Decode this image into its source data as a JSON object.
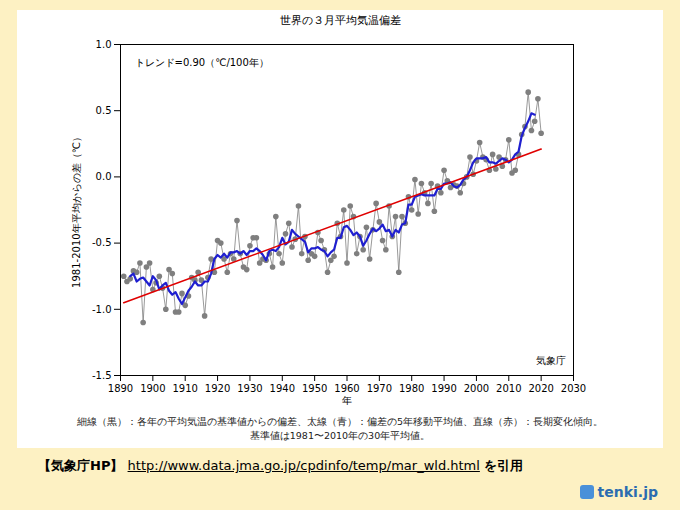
{
  "chart_data": {
    "type": "line",
    "title": "世界の３月平均気温偏差",
    "x_label": "年",
    "y_label": "1981-2010年平均からの差（℃）",
    "annotations": [
      "トレンド=0.90（℃/100年）",
      "気象庁"
    ],
    "notes": [
      "細線（黒）：各年の平均気温の基準値からの偏差、太線（青）：偏差の5年移動平均値、直線（赤）：長期変化傾向。",
      "基準値は1981〜2010年の30年平均値。"
    ],
    "source": "【気象庁HP】",
    "source_url": "http://www.data.jma.go.jp/cpdinfo/temp/mar_wld.html",
    "source_suffix": "を引用",
    "logo": "tenki.jp",
    "x": [
      1891,
      1892,
      1893,
      1894,
      1895,
      1896,
      1897,
      1898,
      1899,
      1900,
      1901,
      1902,
      1903,
      1904,
      1905,
      1906,
      1907,
      1908,
      1909,
      1910,
      1911,
      1912,
      1913,
      1914,
      1915,
      1916,
      1917,
      1918,
      1919,
      1920,
      1921,
      1922,
      1923,
      1924,
      1925,
      1926,
      1927,
      1928,
      1929,
      1930,
      1931,
      1932,
      1933,
      1934,
      1935,
      1936,
      1937,
      1938,
      1939,
      1940,
      1941,
      1942,
      1943,
      1944,
      1945,
      1946,
      1947,
      1948,
      1949,
      1950,
      1951,
      1952,
      1953,
      1954,
      1955,
      1956,
      1957,
      1958,
      1959,
      1960,
      1961,
      1962,
      1963,
      1964,
      1965,
      1966,
      1967,
      1968,
      1969,
      1970,
      1971,
      1972,
      1973,
      1974,
      1975,
      1976,
      1977,
      1978,
      1979,
      1980,
      1981,
      1982,
      1983,
      1984,
      1985,
      1986,
      1987,
      1988,
      1989,
      1990,
      1991,
      1992,
      1993,
      1994,
      1995,
      1996,
      1997,
      1998,
      1999,
      2000,
      2001,
      2002,
      2003,
      2004,
      2005,
      2006,
      2007,
      2008,
      2009,
      2010,
      2011,
      2012,
      2013,
      2014,
      2015,
      2016,
      2017,
      2018,
      2019,
      2020
    ],
    "series": [
      {
        "color": "#7f7f7f",
        "line_style": "thin",
        "marker": "circle",
        "values": [
          -0.75,
          -0.79,
          -0.77,
          -0.71,
          -0.72,
          -0.65,
          -1.1,
          -0.68,
          -0.65,
          -0.85,
          -0.8,
          -0.75,
          -0.84,
          -1.0,
          -0.7,
          -0.73,
          -1.02,
          -1.02,
          -0.88,
          -0.97,
          -0.9,
          -0.76,
          -0.78,
          -0.72,
          -0.78,
          -1.05,
          -0.76,
          -0.62,
          -0.72,
          -0.48,
          -0.5,
          -0.62,
          -0.72,
          -0.58,
          -0.62,
          -0.33,
          -0.58,
          -0.68,
          -0.7,
          -0.52,
          -0.46,
          -0.46,
          -0.65,
          -0.62,
          -0.63,
          -0.58,
          -0.68,
          -0.3,
          -0.58,
          -0.65,
          -0.43,
          -0.35,
          -0.53,
          -0.47,
          -0.22,
          -0.58,
          -0.45,
          -0.63,
          -0.58,
          -0.6,
          -0.42,
          -0.48,
          -0.55,
          -0.72,
          -0.63,
          -0.6,
          -0.35,
          -0.45,
          -0.25,
          -0.65,
          -0.22,
          -0.3,
          -0.58,
          -0.45,
          -0.55,
          -0.38,
          -0.62,
          -0.4,
          -0.2,
          -0.34,
          -0.48,
          -0.55,
          -0.22,
          -0.45,
          -0.3,
          -0.72,
          -0.3,
          -0.35,
          -0.15,
          -0.25,
          -0.02,
          -0.28,
          -0.05,
          -0.12,
          -0.2,
          -0.05,
          -0.26,
          -0.07,
          -0.12,
          0.05,
          -0.03,
          -0.08,
          -0.06,
          -0.07,
          -0.12,
          -0.05,
          0.0,
          0.15,
          0.02,
          0.12,
          0.26,
          0.15,
          0.13,
          0.05,
          0.17,
          0.06,
          0.15,
          0.08,
          0.13,
          0.28,
          0.03,
          0.05,
          0.17,
          0.32,
          0.38,
          0.64,
          0.35,
          0.42,
          0.59,
          0.33
        ]
      },
      {
        "color": "#1f1fd0",
        "line_style": "thick",
        "values": [
          null,
          null,
          -0.75,
          -0.73,
          -0.79,
          -0.77,
          -0.76,
          -0.79,
          -0.82,
          -0.75,
          -0.78,
          -0.85,
          -0.82,
          -0.8,
          -0.86,
          -0.89,
          -0.87,
          -0.92,
          -0.96,
          -0.91,
          -0.86,
          -0.83,
          -0.79,
          -0.82,
          -0.82,
          -0.79,
          -0.79,
          -0.73,
          -0.62,
          -0.59,
          -0.61,
          -0.58,
          -0.61,
          -0.57,
          -0.57,
          -0.56,
          -0.58,
          -0.56,
          -0.59,
          -0.56,
          -0.56,
          -0.54,
          -0.56,
          -0.59,
          -0.63,
          -0.56,
          -0.55,
          -0.56,
          -0.53,
          -0.46,
          -0.51,
          -0.49,
          -0.4,
          -0.43,
          -0.45,
          -0.47,
          -0.49,
          -0.57,
          -0.54,
          -0.54,
          -0.53,
          -0.55,
          -0.56,
          -0.6,
          -0.57,
          -0.55,
          -0.46,
          -0.46,
          -0.38,
          -0.37,
          -0.4,
          -0.44,
          -0.42,
          -0.45,
          -0.52,
          -0.48,
          -0.43,
          -0.39,
          -0.41,
          -0.39,
          -0.36,
          -0.41,
          -0.4,
          -0.45,
          -0.4,
          -0.42,
          -0.36,
          -0.35,
          -0.21,
          -0.21,
          -0.15,
          -0.14,
          -0.13,
          -0.14,
          -0.14,
          -0.14,
          -0.14,
          -0.09,
          -0.09,
          -0.05,
          -0.05,
          -0.04,
          -0.07,
          -0.08,
          -0.06,
          -0.02,
          0.0,
          0.05,
          0.11,
          0.14,
          0.14,
          0.14,
          0.15,
          0.11,
          0.11,
          0.1,
          0.12,
          0.14,
          0.13,
          0.11,
          0.13,
          0.17,
          0.19,
          0.31,
          0.37,
          0.42,
          0.48,
          0.47,
          null,
          null
        ]
      },
      {
        "color": "#e00000",
        "line_style": "solid",
        "x": [
          1891,
          2020
        ],
        "values": [
          -0.95,
          0.21
        ]
      }
    ],
    "xlim": [
      1890,
      2030
    ],
    "xticks": [
      1890,
      1900,
      1910,
      1920,
      1930,
      1940,
      1950,
      1960,
      1970,
      1980,
      1990,
      2000,
      2010,
      2020,
      2030
    ],
    "ylim": [
      -1.5,
      1.0
    ],
    "yticks": [
      -1.5,
      {
        "value": -1.0,
        "label": "-1.0"
      },
      -0.5,
      {
        "value": 0,
        "label": "0.0"
      },
      0.5,
      {
        "value": 1.0,
        "label": "1.0"
      }
    ],
    "grid": false
  }
}
